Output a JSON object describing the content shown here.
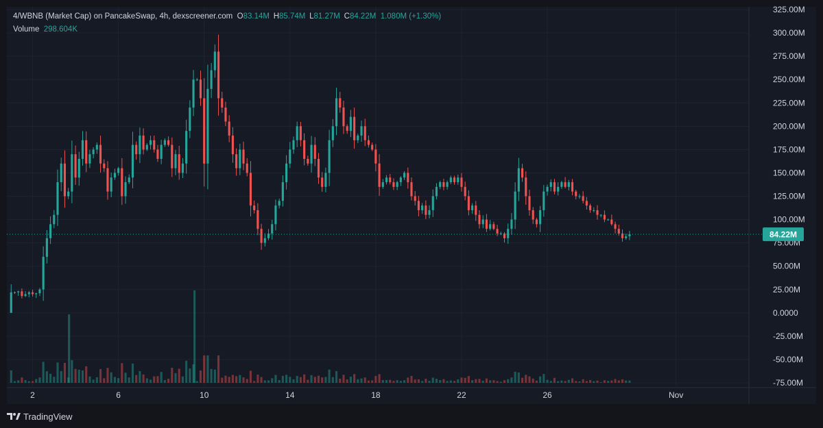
{
  "header": {
    "symbol_line": "4/WBNB (Market Cap) on PancakeSwap, 4h, dexscreener.com",
    "ohlc": [
      {
        "key": "O",
        "value": "83.14M"
      },
      {
        "key": "H",
        "value": "85.74M"
      },
      {
        "key": "L",
        "value": "81.27M"
      },
      {
        "key": "C",
        "value": "84.22M"
      }
    ],
    "change": "1.080M (+1.30%)",
    "volume_label": "Volume",
    "volume_value": "298.604K"
  },
  "colors": {
    "up": "#26a69a",
    "down": "#ef5350",
    "background": "#161a25",
    "text": "#d1d4dc"
  },
  "footer": {
    "brand": "TradingView",
    "logo_icon": "tradingview-logo-icon"
  },
  "chart_data": {
    "type": "candlestick",
    "y_axis": {
      "min": -75000000,
      "max": 325000000,
      "ticks": [
        325000000,
        300000000,
        275000000,
        250000000,
        225000000,
        200000000,
        175000000,
        150000000,
        125000000,
        100000000,
        75000000,
        50000000,
        25000000,
        0,
        -25000000,
        -50000000,
        -75000000
      ],
      "tick_labels": [
        "325.00M",
        "300.00M",
        "275.00M",
        "250.00M",
        "225.00M",
        "200.00M",
        "175.00M",
        "150.00M",
        "125.00M",
        "100.00M",
        "75.00M",
        "50.00M",
        "25.00M",
        "0.0000",
        "-25.00M",
        "-50.00M",
        "-75.00M"
      ]
    },
    "x_axis": {
      "labels": [
        "2",
        "6",
        "10",
        "14",
        "18",
        "22",
        "26",
        "Nov"
      ],
      "label_days": [
        2,
        6,
        10,
        14,
        18,
        22,
        26,
        32
      ],
      "start_day": 0.8,
      "end_day": 35.4
    },
    "current_price": {
      "value": 84220000,
      "label": "84.22M"
    },
    "candles_4h_first_day": 1.0,
    "market_cap_closes_M": [
      0,
      22,
      22,
      23,
      18,
      20,
      22,
      20,
      21,
      25,
      60,
      80,
      95,
      105,
      140,
      160,
      125,
      130,
      170,
      145,
      165,
      185,
      160,
      170,
      175,
      180,
      160,
      155,
      130,
      145,
      150,
      155,
      125,
      140,
      145,
      180,
      170,
      190,
      175,
      180,
      185,
      175,
      165,
      180,
      185,
      180,
      155,
      170,
      150,
      160,
      195,
      220,
      250,
      250,
      230,
      160,
      240,
      260,
      280,
      230,
      220,
      205,
      190,
      170,
      155,
      175,
      160,
      150,
      115,
      110,
      90,
      75,
      80,
      85,
      95,
      115,
      120,
      140,
      160,
      175,
      185,
      200,
      185,
      165,
      160,
      180,
      165,
      145,
      135,
      150,
      185,
      200,
      230,
      220,
      200,
      195,
      210,
      185,
      190,
      200,
      185,
      180,
      175,
      160,
      135,
      140,
      145,
      140,
      135,
      140,
      145,
      150,
      140,
      125,
      120,
      110,
      115,
      105,
      110,
      125,
      135,
      140,
      135,
      140,
      145,
      140,
      145,
      135,
      125,
      110,
      115,
      105,
      95,
      100,
      90,
      95,
      90,
      85,
      85,
      80,
      90,
      100,
      130,
      155,
      145,
      125,
      110,
      100,
      95,
      110,
      130,
      135,
      140,
      130,
      135,
      140,
      135,
      140,
      130,
      125,
      125,
      120,
      115,
      110,
      110,
      105,
      105,
      100,
      100,
      95,
      90,
      85,
      80,
      82,
      84.22
    ],
    "volume_scale": "relative, shown as bars at bottom (first day volume spike highest near day 9.5)"
  }
}
